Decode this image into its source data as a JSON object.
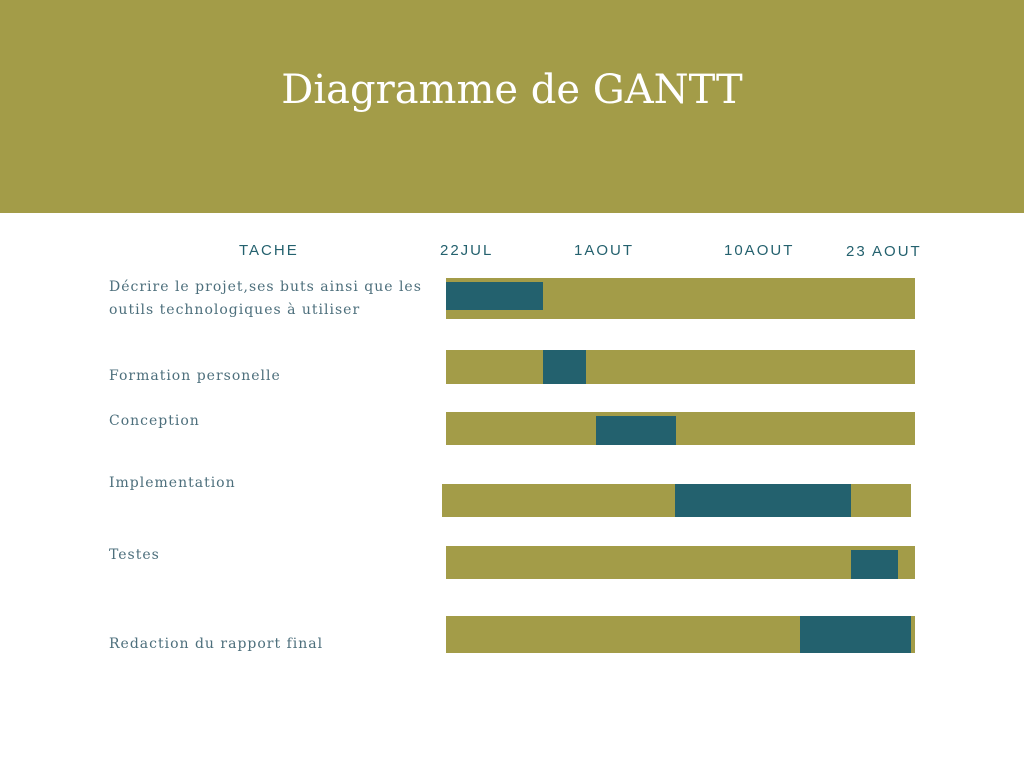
{
  "title": "Diagramme de GANTT",
  "headers": {
    "task": "TACHE",
    "dates": [
      "22JUL",
      "1AOUT",
      "10AOUT",
      "23 AOUT"
    ]
  },
  "colors": {
    "header_bg": "#a39c48",
    "track": "#a39c48",
    "active": "#23616e",
    "text": "#24616e"
  },
  "tasks": [
    {
      "label": "Décrire le projet,ses buts ainsi que les outils technologiques à utiliser"
    },
    {
      "label": "Formation personelle"
    },
    {
      "label": "Conception"
    },
    {
      "label": "Implementation"
    },
    {
      "label": "Testes"
    },
    {
      "label": "Redaction du rapport final"
    }
  ]
}
